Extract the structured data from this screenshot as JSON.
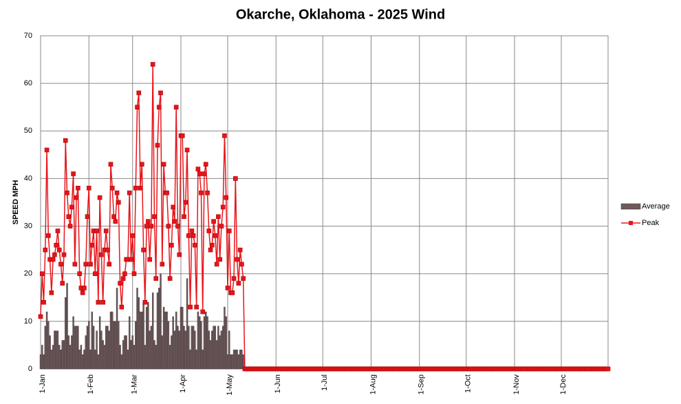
{
  "chart_data": {
    "type": "bar_line",
    "title": "Okarche, Oklahoma - 2025 Wind",
    "y_label": "SPEED MPH",
    "categories": [
      "1-Jan",
      null,
      null,
      null,
      null,
      null,
      null,
      null,
      null,
      null,
      null,
      null,
      null,
      null,
      null,
      null,
      null,
      null,
      null,
      null,
      null,
      null,
      null,
      null,
      null,
      null,
      null,
      null,
      null,
      null,
      null,
      "1-Feb",
      null,
      null,
      null,
      null,
      null,
      null,
      null,
      null,
      null,
      null,
      null,
      null,
      null,
      null,
      null,
      null,
      null,
      null,
      null,
      null,
      null,
      null,
      null,
      null,
      null,
      null,
      null,
      "1-Mar",
      null,
      null,
      null,
      null,
      null,
      null,
      null,
      null,
      null,
      null,
      null,
      null,
      null,
      null,
      null,
      null,
      null,
      null,
      null,
      null,
      null,
      null,
      null,
      null,
      null,
      null,
      null,
      null,
      null,
      null,
      "1-Apr",
      null,
      null,
      null,
      null,
      null,
      null,
      null,
      null,
      null,
      null,
      null,
      null,
      null,
      null,
      null,
      null,
      null,
      null,
      null,
      null,
      null,
      null,
      null,
      null,
      null,
      null,
      null,
      null,
      null,
      "1-May",
      null,
      null,
      null,
      null,
      null,
      null,
      null,
      null,
      null,
      null,
      null,
      null,
      null,
      null,
      null,
      null,
      null,
      null,
      null,
      null,
      null,
      null,
      null,
      null,
      null,
      null,
      null,
      null,
      null,
      null,
      "1-Jun",
      null,
      null,
      null,
      null,
      null,
      null,
      null,
      null,
      null,
      null,
      null,
      null,
      null,
      null,
      null,
      null,
      null,
      null,
      null,
      null,
      null,
      null,
      null,
      null,
      null,
      null,
      null,
      null,
      null,
      "1-Jul",
      null,
      null,
      null,
      null,
      null,
      null,
      null,
      null,
      null,
      null,
      null,
      null,
      null,
      null,
      null,
      null,
      null,
      null,
      null,
      null,
      null,
      null,
      null,
      null,
      null,
      null,
      null,
      null,
      null,
      null,
      "1-Aug",
      null,
      null,
      null,
      null,
      null,
      null,
      null,
      null,
      null,
      null,
      null,
      null,
      null,
      null,
      null,
      null,
      null,
      null,
      null,
      null,
      null,
      null,
      null,
      null,
      null,
      null,
      null,
      null,
      null,
      null,
      "1-Sep",
      null,
      null,
      null,
      null,
      null,
      null,
      null,
      null,
      null,
      null,
      null,
      null,
      null,
      null,
      null,
      null,
      null,
      null,
      null,
      null,
      null,
      null,
      null,
      null,
      null,
      null,
      null,
      null,
      null,
      "1-Oct",
      null,
      null,
      null,
      null,
      null,
      null,
      null,
      null,
      null,
      null,
      null,
      null,
      null,
      null,
      null,
      null,
      null,
      null,
      null,
      null,
      null,
      null,
      null,
      null,
      null,
      null,
      null,
      null,
      null,
      null,
      "1-Nov",
      null,
      null,
      null,
      null,
      null,
      null,
      null,
      null,
      null,
      null,
      null,
      null,
      null,
      null,
      null,
      null,
      null,
      null,
      null,
      null,
      null,
      null,
      null,
      null,
      null,
      null,
      null,
      null,
      null,
      "1-Dec",
      null,
      null,
      null,
      null,
      null,
      null,
      null,
      null,
      null,
      null,
      null,
      null,
      null,
      null,
      null,
      null,
      null,
      null,
      null,
      null,
      null,
      null,
      null,
      null,
      null,
      null,
      null,
      null,
      null,
      null
    ],
    "series": [
      {
        "name": "Average",
        "type": "bar",
        "color": "#6e5a5c",
        "values": [
          3,
          5,
          3,
          9,
          12,
          10,
          7,
          4,
          5,
          8,
          8,
          8,
          5,
          4,
          6,
          6,
          15,
          18,
          7,
          5,
          7,
          11,
          9,
          9,
          9,
          4,
          5,
          3,
          4,
          7,
          9,
          10,
          4,
          12,
          9,
          4,
          8,
          3,
          11,
          8,
          6,
          5,
          9,
          9,
          8,
          12,
          12,
          10,
          10,
          17,
          10,
          5,
          3,
          6,
          7,
          7,
          4,
          11,
          6,
          7,
          5,
          10,
          17,
          15,
          12,
          12,
          14,
          5,
          13,
          14,
          8,
          9,
          16,
          6,
          5,
          16,
          17,
          20,
          7,
          13,
          12,
          12,
          10,
          5,
          7,
          11,
          8,
          12,
          9,
          8,
          13,
          13,
          9,
          8,
          19,
          9,
          4,
          9,
          9,
          8,
          4,
          12,
          11,
          10,
          4,
          11,
          12,
          11,
          8,
          6,
          8,
          9,
          9,
          6,
          9,
          7,
          8,
          9,
          13,
          11,
          3,
          8,
          3,
          3,
          4,
          4,
          4,
          3,
          4,
          4,
          3,
          0,
          0,
          0,
          0,
          0,
          0,
          0,
          0,
          0,
          0,
          0,
          0,
          0,
          0,
          0,
          0,
          0,
          0,
          0,
          0,
          0,
          0,
          0,
          0,
          0,
          0,
          0,
          0,
          0,
          0,
          0,
          0,
          0,
          0,
          0,
          0,
          0,
          0,
          0,
          0,
          0,
          0,
          0,
          0,
          0,
          0,
          0,
          0,
          0,
          0,
          0,
          0,
          0,
          0,
          0,
          0,
          0,
          0,
          0,
          0,
          0,
          0,
          0,
          0,
          0,
          0,
          0,
          0,
          0,
          0,
          0,
          0,
          0,
          0,
          0,
          0,
          0,
          0,
          0,
          0,
          0,
          0,
          0,
          0,
          0,
          0,
          0,
          0,
          0,
          0,
          0,
          0,
          0,
          0,
          0,
          0,
          0,
          0,
          0,
          0,
          0,
          0,
          0,
          0,
          0,
          0,
          0,
          0,
          0,
          0,
          0,
          0,
          0,
          0,
          0,
          0,
          0,
          0,
          0,
          0,
          0,
          0,
          0,
          0,
          0,
          0,
          0,
          0,
          0,
          0,
          0,
          0,
          0,
          0,
          0,
          0,
          0,
          0,
          0,
          0,
          0,
          0,
          0,
          0,
          0,
          0,
          0,
          0,
          0,
          0,
          0,
          0,
          0,
          0,
          0,
          0,
          0,
          0,
          0,
          0,
          0,
          0,
          0,
          0,
          0,
          0,
          0,
          0,
          0,
          0,
          0,
          0,
          0,
          0,
          0,
          0,
          0,
          0,
          0,
          0,
          0,
          0,
          0,
          0,
          0,
          0,
          0,
          0,
          0,
          0,
          0,
          0,
          0,
          0,
          0,
          0,
          0,
          0,
          0,
          0,
          0,
          0,
          0,
          0,
          0,
          0,
          0,
          0,
          0,
          0,
          0,
          0,
          0,
          0,
          0,
          0,
          0,
          0,
          0,
          0,
          0,
          0,
          0,
          0,
          0,
          0,
          0,
          0,
          0,
          0,
          0,
          0,
          0,
          0
        ]
      },
      {
        "name": "Peak",
        "type": "line",
        "color": "#e8141a",
        "values": [
          11,
          20,
          14,
          25,
          46,
          28,
          23,
          16,
          23,
          24,
          26,
          29,
          25,
          22,
          18,
          24,
          48,
          37,
          32,
          30,
          34,
          41,
          22,
          36,
          38,
          20,
          17,
          16,
          17,
          22,
          32,
          38,
          22,
          26,
          29,
          20,
          29,
          14,
          36,
          24,
          14,
          25,
          29,
          25,
          22,
          43,
          38,
          32,
          31,
          37,
          35,
          18,
          13,
          19,
          20,
          23,
          23,
          37,
          23,
          28,
          20,
          38,
          55,
          58,
          38,
          43,
          25,
          14,
          30,
          31,
          23,
          30,
          64,
          32,
          19,
          47,
          55,
          58,
          22,
          43,
          37,
          37,
          30,
          19,
          26,
          34,
          31,
          55,
          30,
          24,
          49,
          49,
          32,
          35,
          46,
          28,
          13,
          29,
          28,
          26,
          13,
          42,
          41,
          37,
          12,
          41,
          43,
          37,
          29,
          25,
          26,
          31,
          28,
          22,
          32,
          23,
          30,
          34,
          49,
          36,
          17,
          29,
          16,
          16,
          19,
          40,
          23,
          18,
          25,
          22,
          19,
          0,
          0,
          0,
          0,
          0,
          0,
          0,
          0,
          0,
          0,
          0,
          0,
          0,
          0,
          0,
          0,
          0,
          0,
          0,
          0,
          0,
          0,
          0,
          0,
          0,
          0,
          0,
          0,
          0,
          0,
          0,
          0,
          0,
          0,
          0,
          0,
          0,
          0,
          0,
          0,
          0,
          0,
          0,
          0,
          0,
          0,
          0,
          0,
          0,
          0,
          0,
          0,
          0,
          0,
          0,
          0,
          0,
          0,
          0,
          0,
          0,
          0,
          0,
          0,
          0,
          0,
          0,
          0,
          0,
          0,
          0,
          0,
          0,
          0,
          0,
          0,
          0,
          0,
          0,
          0,
          0,
          0,
          0,
          0,
          0,
          0,
          0,
          0,
          0,
          0,
          0,
          0,
          0,
          0,
          0,
          0,
          0,
          0,
          0,
          0,
          0,
          0,
          0,
          0,
          0,
          0,
          0,
          0,
          0,
          0,
          0,
          0,
          0,
          0,
          0,
          0,
          0,
          0,
          0,
          0,
          0,
          0,
          0,
          0,
          0,
          0,
          0,
          0,
          0,
          0,
          0,
          0,
          0,
          0,
          0,
          0,
          0,
          0,
          0,
          0,
          0,
          0,
          0,
          0,
          0,
          0,
          0,
          0,
          0,
          0,
          0,
          0,
          0,
          0,
          0,
          0,
          0,
          0,
          0,
          0,
          0,
          0,
          0,
          0,
          0,
          0,
          0,
          0,
          0,
          0,
          0,
          0,
          0,
          0,
          0,
          0,
          0,
          0,
          0,
          0,
          0,
          0,
          0,
          0,
          0,
          0,
          0,
          0,
          0,
          0,
          0,
          0,
          0,
          0,
          0,
          0,
          0,
          0,
          0,
          0,
          0,
          0,
          0,
          0,
          0,
          0,
          0,
          0,
          0,
          0,
          0,
          0,
          0,
          0,
          0,
          0,
          0,
          0,
          0,
          0,
          0,
          0,
          0,
          0,
          0,
          0,
          0,
          0,
          0,
          0,
          0,
          0,
          0,
          0
        ]
      }
    ],
    "ylim": [
      0,
      70
    ],
    "yticks": [
      0,
      10,
      20,
      30,
      40,
      50,
      60,
      70
    ],
    "grid": true,
    "legend": "right"
  }
}
